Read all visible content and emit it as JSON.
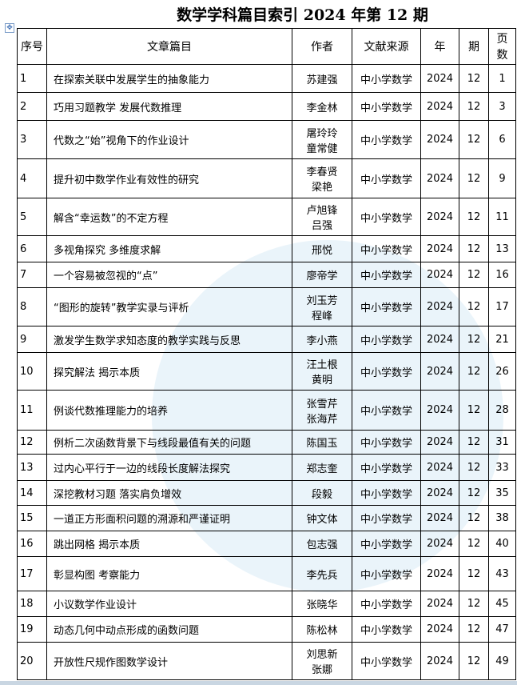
{
  "title": "数学学科篇目索引 2024 年第 12 期",
  "headers": {
    "no": "序号",
    "title": "文章篇目",
    "author": "作者",
    "source": "文献来源",
    "year": "年",
    "issue": "期",
    "page": "页数"
  },
  "rows": [
    {
      "no": "1",
      "title": "在探索关联中发展学生的抽象能力",
      "author": "苏建强",
      "source": "中小学数学",
      "year": "2024",
      "issue": "12",
      "page": "1"
    },
    {
      "no": "2",
      "title": "巧用习题教学 发展代数推理",
      "author": "李金林",
      "source": "中小学数学",
      "year": "2024",
      "issue": "12",
      "page": "3"
    },
    {
      "no": "3",
      "title": "代数之“始”视角下的作业设计",
      "author": "屠玲玲 童常健",
      "source": "中小学数学",
      "year": "2024",
      "issue": "12",
      "page": "6"
    },
    {
      "no": "4",
      "title": "提升初中数学作业有效性的研究",
      "author": "李春贤 梁艳",
      "source": "中小学数学",
      "year": "2024",
      "issue": "12",
      "page": "9"
    },
    {
      "no": "5",
      "title": "解含“幸运数”的不定方程",
      "author": "卢旭锋 吕强",
      "source": "中小学数学",
      "year": "2024",
      "issue": "12",
      "page": "11"
    },
    {
      "no": "6",
      "title": "多视角探究 多维度求解",
      "author": "邢悦",
      "source": "中小学数学",
      "year": "2024",
      "issue": "12",
      "page": "13"
    },
    {
      "no": "7",
      "title": "一个容易被忽视的“点”",
      "author": "廖帝学",
      "source": "中小学数学",
      "year": "2024",
      "issue": "12",
      "page": "16"
    },
    {
      "no": "8",
      "title": "“图形的旋转”教学实录与评析",
      "author": "刘玉芳 程峰",
      "source": "中小学数学",
      "year": "2024",
      "issue": "12",
      "page": "17"
    },
    {
      "no": "9",
      "title": "激发学生数学求知态度的教学实践与反思",
      "author": "李小燕",
      "source": "中小学数学",
      "year": "2024",
      "issue": "12",
      "page": "21"
    },
    {
      "no": "10",
      "title": "探究解法 揭示本质",
      "author": "汪土根 黄明",
      "source": "中小学数学",
      "year": "2024",
      "issue": "12",
      "page": "26"
    },
    {
      "no": "11",
      "title": "例谈代数推理能力的培养",
      "author": "张雪芹 张海芹",
      "source": "中小学数学",
      "year": "2024",
      "issue": "12",
      "page": "28"
    },
    {
      "no": "12",
      "title": "例析二次函数背景下与线段最值有关的问题",
      "author": "陈国玉",
      "source": "中小学数学",
      "year": "2024",
      "issue": "12",
      "page": "31"
    },
    {
      "no": "13",
      "title": "过内心平行于一边的线段长度解法探究",
      "author": "郑志奎",
      "source": "中小学数学",
      "year": "2024",
      "issue": "12",
      "page": "33"
    },
    {
      "no": "14",
      "title": "深挖教材习题 落实肩负增效",
      "author": "段毅",
      "source": "中小学数学",
      "year": "2024",
      "issue": "12",
      "page": "35"
    },
    {
      "no": "15",
      "title": "一道正方形面积问题的溯源和严谨证明",
      "author": "钟文体",
      "source": "中小学数学",
      "year": "2024",
      "issue": "12",
      "page": "38"
    },
    {
      "no": "16",
      "title": "跳出网格 揭示本质",
      "author": "包志强",
      "source": "中小学数学",
      "year": "2024",
      "issue": "12",
      "page": "40"
    },
    {
      "no": "17",
      "title": "彰显构图 考察能力",
      "author": "李先兵",
      "source": "中小学数学",
      "year": "2024",
      "issue": "12",
      "page": "43"
    },
    {
      "no": "18",
      "title": "小议数学作业设计",
      "author": "张晓华",
      "source": "中小学数学",
      "year": "2024",
      "issue": "12",
      "page": "45"
    },
    {
      "no": "19",
      "title": "动态几何中动点形成的函数问题",
      "author": "陈松林",
      "source": "中小学数学",
      "year": "2024",
      "issue": "12",
      "page": "47"
    },
    {
      "no": "20",
      "title": "开放性尺规作图数学设计",
      "author": "刘思新 张娜",
      "source": "中小学数学",
      "year": "2024",
      "issue": "12",
      "page": "49"
    }
  ]
}
